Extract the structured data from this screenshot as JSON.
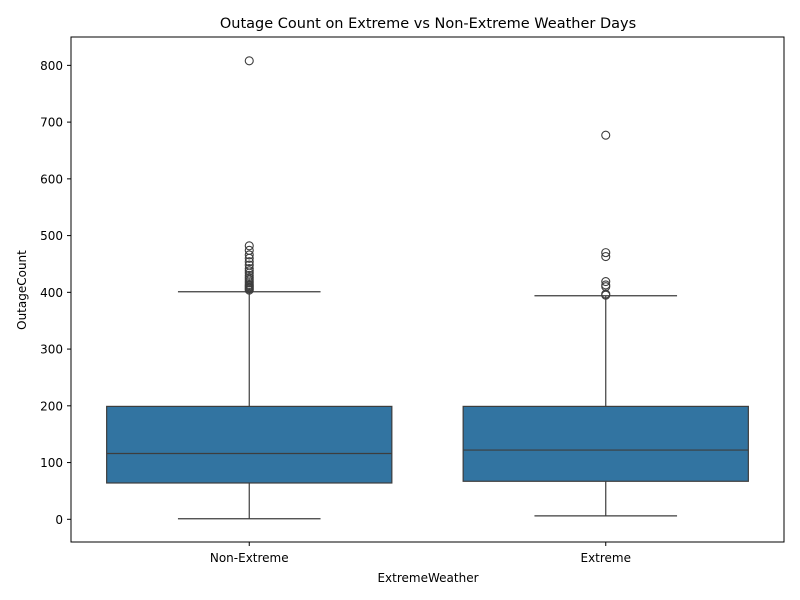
{
  "chart_data": {
    "type": "box",
    "title": "Outage Count on Extreme vs Non-Extreme Weather Days",
    "xlabel": "ExtremeWeather",
    "ylabel": "OutageCount",
    "ylim": [
      -40,
      850
    ],
    "yticks": [
      0,
      100,
      200,
      300,
      400,
      500,
      600,
      700,
      800
    ],
    "ytick_labels": [
      "0",
      "100",
      "200",
      "300",
      "400",
      "500",
      "600",
      "700",
      "800"
    ],
    "categories": [
      "Non-Extreme",
      "Extreme"
    ],
    "grid": false,
    "box_color": "#3274a1",
    "edge_color": "#3d3d3d",
    "boxes": [
      {
        "category": "Non-Extreme",
        "whisker_low": 1,
        "q1": 64,
        "median": 116,
        "q3": 199,
        "whisker_high": 401,
        "outliers": [
          404,
          406,
          408,
          410,
          412,
          414,
          417,
          420,
          423,
          426,
          430,
          434,
          438,
          442,
          448,
          454,
          460,
          466,
          474,
          482,
          808
        ]
      },
      {
        "category": "Extreme",
        "whisker_low": 6,
        "q1": 67,
        "median": 122,
        "q3": 199,
        "whisker_high": 394,
        "outliers": [
          395,
          397,
          410,
          413,
          419,
          463,
          470,
          677
        ]
      }
    ]
  }
}
